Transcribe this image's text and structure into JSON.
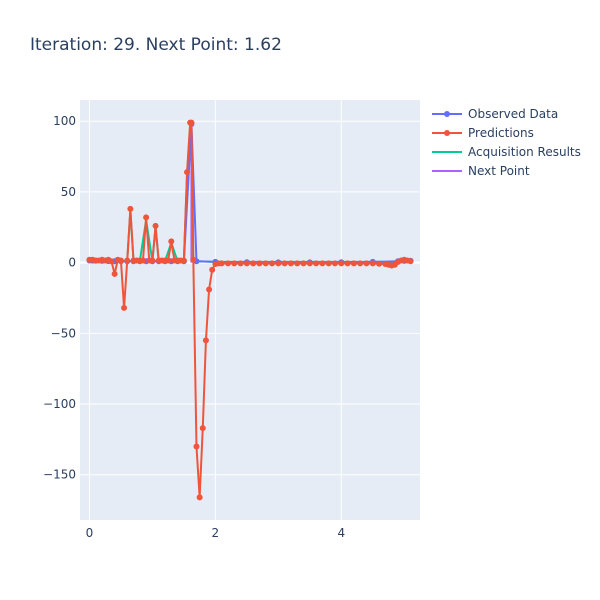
{
  "chart_data": {
    "type": "line",
    "title": "Iteration: 29. Next Point: 1.62",
    "xlabel": "",
    "ylabel": "",
    "xlim": [
      -0.15,
      5.25
    ],
    "ylim": [
      -182,
      115
    ],
    "x_ticks": [
      0,
      2,
      4
    ],
    "y_ticks": [
      100,
      50,
      0,
      -50,
      -100,
      -150
    ],
    "x_tick_labels": [
      "0",
      "2",
      "4"
    ],
    "y_tick_labels": [
      "100",
      "50",
      "0",
      "−50",
      "−100",
      "−150"
    ],
    "grid": true,
    "legend_position": "top-right",
    "series": [
      {
        "name": "Observed Data",
        "color": "#636efa",
        "mode": "lines+markers",
        "x": [
          0,
          0.05,
          0.1,
          0.2,
          0.3,
          0.4,
          0.5,
          0.6,
          0.7,
          0.8,
          0.9,
          1.0,
          1.1,
          1.2,
          1.3,
          1.4,
          1.5,
          1.62,
          1.7,
          2.0,
          2.5,
          3.0,
          3.5,
          4.0,
          4.5,
          4.9,
          5.0,
          5.1
        ],
        "y": [
          1.5,
          1.4,
          1.3,
          1.2,
          1.1,
          1.0,
          1.0,
          1.0,
          1.0,
          1.0,
          1.0,
          1.0,
          1.0,
          1.0,
          1.0,
          1.0,
          1.0,
          98,
          1.0,
          0.5,
          0.3,
          0.2,
          0.2,
          0.3,
          0.5,
          1.0,
          1.2,
          1.3
        ]
      },
      {
        "name": "Predictions",
        "color": "#ef553b",
        "mode": "lines+markers",
        "x": [
          0,
          0.05,
          0.1,
          0.15,
          0.2,
          0.25,
          0.3,
          0.35,
          0.4,
          0.45,
          0.5,
          0.55,
          0.6,
          0.65,
          0.7,
          0.75,
          0.8,
          0.85,
          0.9,
          0.95,
          1.0,
          1.05,
          1.1,
          1.15,
          1.2,
          1.25,
          1.3,
          1.35,
          1.4,
          1.45,
          1.5,
          1.55,
          1.6,
          1.62,
          1.65,
          1.7,
          1.75,
          1.8,
          1.85,
          1.9,
          1.95,
          2.0,
          2.05,
          2.1,
          2.2,
          2.3,
          2.4,
          2.5,
          2.6,
          2.7,
          2.8,
          2.9,
          3.0,
          3.1,
          3.2,
          3.3,
          3.4,
          3.5,
          3.6,
          3.7,
          3.8,
          3.9,
          4.0,
          4.1,
          4.2,
          4.3,
          4.4,
          4.5,
          4.6,
          4.7,
          4.75,
          4.8,
          4.85,
          4.9,
          4.95,
          5.0,
          5.05,
          5.1
        ],
        "y": [
          2,
          2,
          1.5,
          1.5,
          2,
          1.5,
          2,
          1,
          -8,
          2,
          1.5,
          -32,
          1.5,
          38,
          1.5,
          1.5,
          1.5,
          1.5,
          32,
          1.5,
          1.5,
          26,
          1.5,
          1.5,
          1.5,
          1.5,
          15,
          1.5,
          1.5,
          1.5,
          1.5,
          64,
          99,
          99,
          2,
          -130,
          -166,
          -117,
          -55,
          -19,
          -5,
          -1,
          -0.5,
          -0.5,
          -0.5,
          -0.5,
          -0.5,
          -0.5,
          -0.5,
          -0.5,
          -0.5,
          -0.5,
          -0.5,
          -0.5,
          -0.5,
          -0.5,
          -0.5,
          -0.5,
          -0.5,
          -0.5,
          -0.5,
          -0.5,
          -0.5,
          -0.5,
          -0.5,
          -0.5,
          -0.5,
          -0.5,
          -0.8,
          -1,
          -1.5,
          -2,
          -1.5,
          0.5,
          1.5,
          2,
          1.5,
          1
        ]
      },
      {
        "name": "Acquisition Results",
        "color": "#00cc96",
        "mode": "lines",
        "x": [
          0,
          0.1,
          0.2,
          0.3,
          0.4,
          0.5,
          0.6,
          0.65,
          0.7,
          0.8,
          0.9,
          1.0,
          1.05,
          1.1,
          1.2,
          1.3,
          1.4,
          1.5,
          1.55,
          1.6,
          1.62,
          1.65,
          1.7,
          2.0,
          2.5,
          3.0,
          3.5,
          4.0,
          4.5,
          5.0,
          5.1
        ],
        "y": [
          1,
          1,
          1,
          1,
          1,
          1,
          1,
          37,
          1,
          1,
          30,
          1,
          25,
          1,
          1,
          14,
          1,
          1,
          62,
          97,
          97,
          2,
          1,
          0.5,
          0.5,
          0.5,
          0.5,
          0.5,
          0.5,
          0.5,
          0.5
        ]
      },
      {
        "name": "Next Point",
        "color": "#ab63fa",
        "mode": "lines",
        "x": [
          1.62,
          1.62
        ],
        "y": [
          0,
          98
        ]
      }
    ]
  }
}
